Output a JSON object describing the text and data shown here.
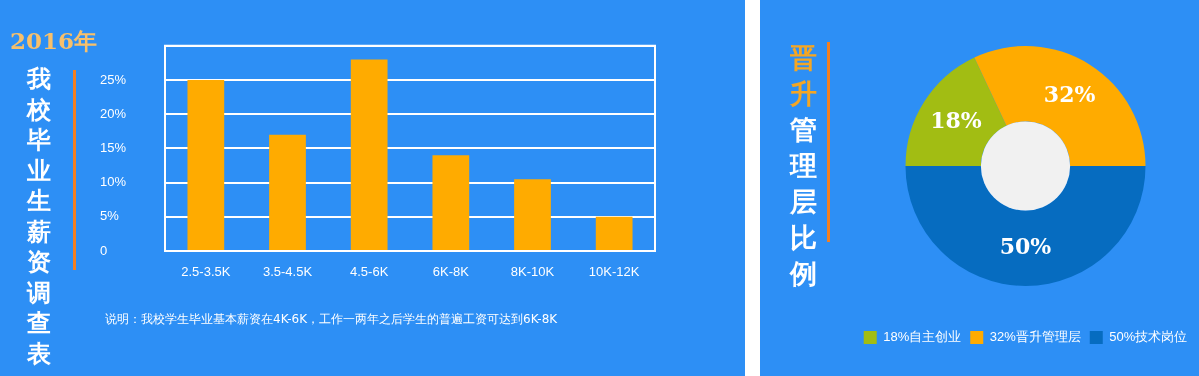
{
  "chart_data": [
    {
      "type": "bar",
      "title": "我校毕业生薪资调查表",
      "subtitle": "2016年",
      "categories": [
        "2.5-3.5K",
        "3.5-4.5K",
        "4.5-6K",
        "6K-8K",
        "8K-10K",
        "10K-12K"
      ],
      "values": [
        25,
        17,
        28,
        14,
        10.5,
        5
      ],
      "color": "#ffab00",
      "ylim": [
        0,
        30
      ],
      "yticks": [
        0,
        {
          "value": 5,
          "label": "5%"
        },
        {
          "value": 10,
          "label": "10%"
        },
        {
          "value": 15,
          "label": "15%"
        },
        {
          "value": 20,
          "label": "20%"
        },
        {
          "value": 25,
          "label": "25%"
        },
        {
          "value": 30,
          "label": null
        }
      ],
      "grid": "y",
      "annotations": [
        "说明：我校学生毕业基本薪资在4K-6K，工作一两年之后学生的普遍工资可达到6K-8K"
      ]
    },
    {
      "type": "donut",
      "title": "晋升管理层比例",
      "categories": [
        "18%自主创业",
        "32%晋升管理层",
        "50%技术岗位"
      ],
      "values": [
        18,
        32,
        50
      ],
      "colors": [
        "#a2bd13",
        "#ffab00",
        "#066cc0"
      ],
      "value_labels": [
        "18%",
        "32%",
        "50%"
      ],
      "legend": "bottom"
    }
  ]
}
